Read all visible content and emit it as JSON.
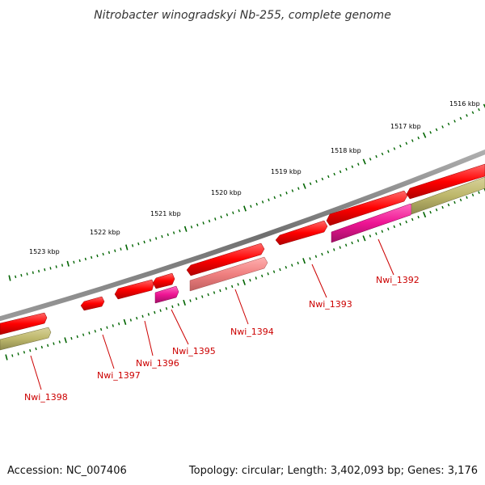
{
  "title": "Nitrobacter winogradskyi Nb-255, complete genome",
  "footer": {
    "accession": "Accession: NC_007406",
    "stats": "Topology: circular; Length: 3,402,093 bp; Genes: 3,176"
  },
  "kbp_labels": [
    "1516 kbp",
    "1517 kbp",
    "1518 kbp",
    "1519 kbp",
    "1520 kbp",
    "1521 kbp",
    "1522 kbp",
    "1523 kbp"
  ],
  "gene_labels": [
    "Nwi_1392",
    "Nwi_1393",
    "Nwi_1394",
    "Nwi_1395",
    "Nwi_1396",
    "Nwi_1397",
    "Nwi_1398"
  ],
  "colors": {
    "backbone": "#808080",
    "cds": "#ff0000",
    "cds_light": "#f08080",
    "gene_magenta": "#ee1493",
    "gene_khaki": "#bdb76b",
    "tick": "#006400",
    "label": "#cc0000"
  }
}
